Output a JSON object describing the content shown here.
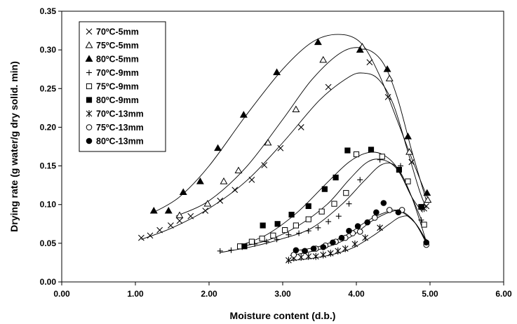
{
  "chart_data": {
    "type": "scatter",
    "title": "",
    "xlabel": "Moisture content (d.b.)",
    "ylabel": "Drying rate (g water/g dry solid. min)",
    "xlim": [
      0,
      6
    ],
    "ylim": [
      0,
      0.35
    ],
    "x_ticks": [
      "0.00",
      "1.00",
      "2.00",
      "3.00",
      "4.00",
      "5.00",
      "6.00"
    ],
    "y_ticks": [
      "0.00",
      "0.05",
      "0.10",
      "0.15",
      "0.20",
      "0.25",
      "0.30",
      "0.35"
    ],
    "grid": false,
    "legend_position": "top-left",
    "series": [
      {
        "name": "70ºC-5mm",
        "marker": "x",
        "points": [
          [
            1.08,
            0.057
          ],
          [
            1.2,
            0.06
          ],
          [
            1.33,
            0.067
          ],
          [
            1.48,
            0.073
          ],
          [
            1.6,
            0.079
          ],
          [
            1.75,
            0.085
          ],
          [
            1.95,
            0.092
          ],
          [
            2.15,
            0.105
          ],
          [
            2.35,
            0.119
          ],
          [
            2.58,
            0.132
          ],
          [
            2.75,
            0.151
          ],
          [
            2.97,
            0.173
          ],
          [
            3.25,
            0.2
          ],
          [
            3.62,
            0.252
          ],
          [
            4.18,
            0.284
          ],
          [
            4.43,
            0.239
          ],
          [
            4.75,
            0.155
          ],
          [
            4.95,
            0.098
          ]
        ],
        "fit": [
          [
            1.08,
            0.055
          ],
          [
            1.5,
            0.07
          ],
          [
            2.0,
            0.095
          ],
          [
            2.5,
            0.13
          ],
          [
            3.0,
            0.18
          ],
          [
            3.5,
            0.235
          ],
          [
            3.9,
            0.265
          ],
          [
            4.1,
            0.27
          ],
          [
            4.3,
            0.262
          ],
          [
            4.5,
            0.23
          ],
          [
            4.7,
            0.168
          ],
          [
            4.85,
            0.12
          ],
          [
            4.95,
            0.095
          ]
        ]
      },
      {
        "name": "75ºC-5mm",
        "marker": "triangle-open",
        "points": [
          [
            1.6,
            0.086
          ],
          [
            1.98,
            0.101
          ],
          [
            2.2,
            0.13
          ],
          [
            2.4,
            0.144
          ],
          [
            2.8,
            0.18
          ],
          [
            3.18,
            0.223
          ],
          [
            3.55,
            0.287
          ],
          [
            4.08,
            0.304
          ],
          [
            4.45,
            0.263
          ],
          [
            4.72,
            0.168
          ],
          [
            4.97,
            0.106
          ]
        ],
        "fit": [
          [
            1.55,
            0.085
          ],
          [
            2.0,
            0.105
          ],
          [
            2.5,
            0.148
          ],
          [
            3.0,
            0.21
          ],
          [
            3.4,
            0.262
          ],
          [
            3.8,
            0.297
          ],
          [
            4.1,
            0.302
          ],
          [
            4.35,
            0.285
          ],
          [
            4.55,
            0.24
          ],
          [
            4.75,
            0.17
          ],
          [
            4.95,
            0.105
          ]
        ]
      },
      {
        "name": "80ºC-5mm",
        "marker": "triangle-filled",
        "points": [
          [
            1.25,
            0.092
          ],
          [
            1.45,
            0.092
          ],
          [
            1.65,
            0.116
          ],
          [
            1.88,
            0.13
          ],
          [
            2.12,
            0.173
          ],
          [
            2.47,
            0.216
          ],
          [
            2.92,
            0.271
          ],
          [
            3.48,
            0.31
          ],
          [
            4.05,
            0.3
          ],
          [
            4.42,
            0.275
          ],
          [
            4.7,
            0.188
          ],
          [
            4.96,
            0.115
          ]
        ],
        "fit": [
          [
            1.25,
            0.09
          ],
          [
            1.6,
            0.11
          ],
          [
            2.0,
            0.15
          ],
          [
            2.5,
            0.215
          ],
          [
            3.0,
            0.275
          ],
          [
            3.4,
            0.31
          ],
          [
            3.75,
            0.32
          ],
          [
            4.05,
            0.31
          ],
          [
            4.3,
            0.27
          ],
          [
            4.55,
            0.21
          ],
          [
            4.75,
            0.16
          ],
          [
            4.96,
            0.11
          ]
        ]
      },
      {
        "name": "70ºC-9mm",
        "marker": "plus",
        "points": [
          [
            2.15,
            0.04
          ],
          [
            2.3,
            0.041
          ],
          [
            2.45,
            0.045
          ],
          [
            2.62,
            0.049
          ],
          [
            2.78,
            0.052
          ],
          [
            2.92,
            0.055
          ],
          [
            3.08,
            0.061
          ],
          [
            3.22,
            0.063
          ],
          [
            3.35,
            0.066
          ],
          [
            3.48,
            0.07
          ],
          [
            3.62,
            0.078
          ],
          [
            3.76,
            0.085
          ],
          [
            3.9,
            0.101
          ],
          [
            4.05,
            0.132
          ],
          [
            4.32,
            0.158
          ],
          [
            4.6,
            0.15
          ],
          [
            4.88,
            0.08
          ],
          [
            4.95,
            0.052
          ]
        ],
        "fit": [
          [
            2.15,
            0.038
          ],
          [
            2.6,
            0.046
          ],
          [
            3.0,
            0.056
          ],
          [
            3.4,
            0.07
          ],
          [
            3.8,
            0.1
          ],
          [
            4.1,
            0.13
          ],
          [
            4.35,
            0.152
          ],
          [
            4.55,
            0.148
          ],
          [
            4.75,
            0.11
          ],
          [
            4.95,
            0.052
          ]
        ]
      },
      {
        "name": "75ºC-9mm",
        "marker": "square-open",
        "points": [
          [
            2.42,
            0.046
          ],
          [
            2.58,
            0.052
          ],
          [
            2.72,
            0.056
          ],
          [
            2.87,
            0.06
          ],
          [
            3.03,
            0.067
          ],
          [
            3.18,
            0.073
          ],
          [
            3.35,
            0.081
          ],
          [
            3.53,
            0.091
          ],
          [
            3.7,
            0.101
          ],
          [
            3.86,
            0.115
          ],
          [
            4.0,
            0.165
          ],
          [
            4.35,
            0.162
          ],
          [
            4.7,
            0.13
          ],
          [
            4.92,
            0.074
          ]
        ],
        "fit": [
          [
            2.4,
            0.045
          ],
          [
            2.8,
            0.054
          ],
          [
            3.2,
            0.072
          ],
          [
            3.6,
            0.1
          ],
          [
            3.9,
            0.132
          ],
          [
            4.15,
            0.155
          ],
          [
            4.35,
            0.158
          ],
          [
            4.55,
            0.146
          ],
          [
            4.75,
            0.11
          ],
          [
            4.92,
            0.072
          ]
        ]
      },
      {
        "name": "80ºC-9mm",
        "marker": "square-filled",
        "points": [
          [
            2.48,
            0.046
          ],
          [
            2.73,
            0.073
          ],
          [
            2.93,
            0.075
          ],
          [
            3.12,
            0.087
          ],
          [
            3.35,
            0.098
          ],
          [
            3.57,
            0.12
          ],
          [
            3.72,
            0.135
          ],
          [
            3.88,
            0.17
          ],
          [
            4.2,
            0.171
          ],
          [
            4.58,
            0.145
          ],
          [
            4.88,
            0.097
          ]
        ],
        "fit": [
          [
            2.45,
            0.048
          ],
          [
            2.8,
            0.062
          ],
          [
            3.2,
            0.09
          ],
          [
            3.6,
            0.128
          ],
          [
            3.9,
            0.155
          ],
          [
            4.15,
            0.167
          ],
          [
            4.35,
            0.165
          ],
          [
            4.55,
            0.148
          ],
          [
            4.75,
            0.11
          ],
          [
            4.9,
            0.09
          ]
        ]
      },
      {
        "name": "70ºC-13mm",
        "marker": "asterisk",
        "points": [
          [
            3.08,
            0.028
          ],
          [
            3.15,
            0.031
          ],
          [
            3.25,
            0.032
          ],
          [
            3.35,
            0.033
          ],
          [
            3.45,
            0.033
          ],
          [
            3.55,
            0.035
          ],
          [
            3.65,
            0.037
          ],
          [
            3.75,
            0.04
          ],
          [
            3.85,
            0.043
          ],
          [
            3.98,
            0.049
          ],
          [
            4.12,
            0.057
          ],
          [
            4.32,
            0.07
          ],
          [
            4.92,
            0.095
          ]
        ],
        "fit": [
          [
            3.05,
            0.027
          ],
          [
            3.5,
            0.032
          ],
          [
            3.9,
            0.042
          ],
          [
            4.2,
            0.058
          ],
          [
            4.45,
            0.075
          ],
          [
            4.6,
            0.084
          ],
          [
            4.75,
            0.082
          ],
          [
            4.95,
            0.052
          ]
        ]
      },
      {
        "name": "75ºC-13mm",
        "marker": "circle-open",
        "points": [
          [
            3.15,
            0.035
          ],
          [
            3.3,
            0.04
          ],
          [
            3.45,
            0.043
          ],
          [
            3.58,
            0.047
          ],
          [
            3.72,
            0.052
          ],
          [
            3.85,
            0.057
          ],
          [
            3.95,
            0.063
          ],
          [
            4.05,
            0.065
          ],
          [
            4.25,
            0.083
          ],
          [
            4.45,
            0.093
          ],
          [
            4.62,
            0.093
          ],
          [
            4.95,
            0.048
          ]
        ],
        "fit": [
          [
            3.1,
            0.034
          ],
          [
            3.5,
            0.042
          ],
          [
            3.9,
            0.057
          ],
          [
            4.2,
            0.078
          ],
          [
            4.45,
            0.09
          ],
          [
            4.62,
            0.091
          ],
          [
            4.8,
            0.076
          ],
          [
            4.95,
            0.05
          ]
        ]
      },
      {
        "name": "80ºC-13mm",
        "marker": "circle-filled",
        "points": [
          [
            3.18,
            0.041
          ],
          [
            3.3,
            0.04
          ],
          [
            3.42,
            0.043
          ],
          [
            3.55,
            0.045
          ],
          [
            3.68,
            0.051
          ],
          [
            3.8,
            0.057
          ],
          [
            3.9,
            0.066
          ],
          [
            4.02,
            0.072
          ],
          [
            4.15,
            0.077
          ],
          [
            4.27,
            0.09
          ],
          [
            4.37,
            0.102
          ],
          [
            4.57,
            0.09
          ],
          [
            4.95,
            0.051
          ]
        ],
        "fit": [
          [
            3.15,
            0.04
          ],
          [
            3.5,
            0.046
          ],
          [
            3.85,
            0.06
          ],
          [
            4.15,
            0.079
          ],
          [
            4.4,
            0.09
          ],
          [
            4.58,
            0.092
          ],
          [
            4.8,
            0.076
          ],
          [
            4.95,
            0.053
          ]
        ]
      }
    ]
  }
}
